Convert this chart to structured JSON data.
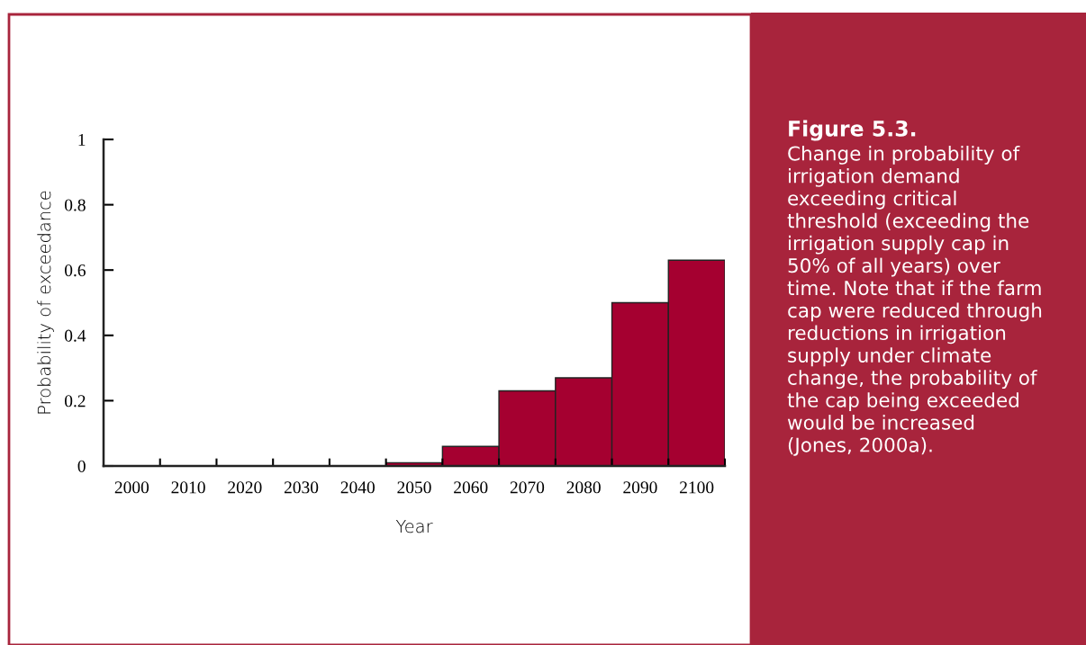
{
  "chart_data": {
    "type": "bar",
    "title": "Figure 5.3.",
    "annotations": [
      "Change in probability of\nirrigation demand\nexceeding critical\nthreshold (exceeding the\nirrigation supply cap in\n50% of all years) over\ntime. Note that if the farm\ncap were reduced through\nreductions in irrigation\nsupply under climate\nchange, the probability of\nthe cap being exceeded\nwould be increased\n(Jones, 2000a)."
    ],
    "xlabel": "Year",
    "ylabel": "Probability of exceedance",
    "categories": [
      "2000",
      "2010",
      "2020",
      "2030",
      "2040",
      "2050",
      "2060",
      "2070",
      "2080",
      "2090",
      "2100"
    ],
    "values": [
      0,
      0,
      0,
      0,
      0,
      0.01,
      0.06,
      0.23,
      0.27,
      0.5,
      0.63
    ],
    "color": "#a50030",
    "ylim": [
      0,
      1
    ],
    "yticks": [
      0,
      0.2,
      0.4,
      0.6,
      0.8,
      1
    ],
    "grid": false,
    "legend": false
  }
}
